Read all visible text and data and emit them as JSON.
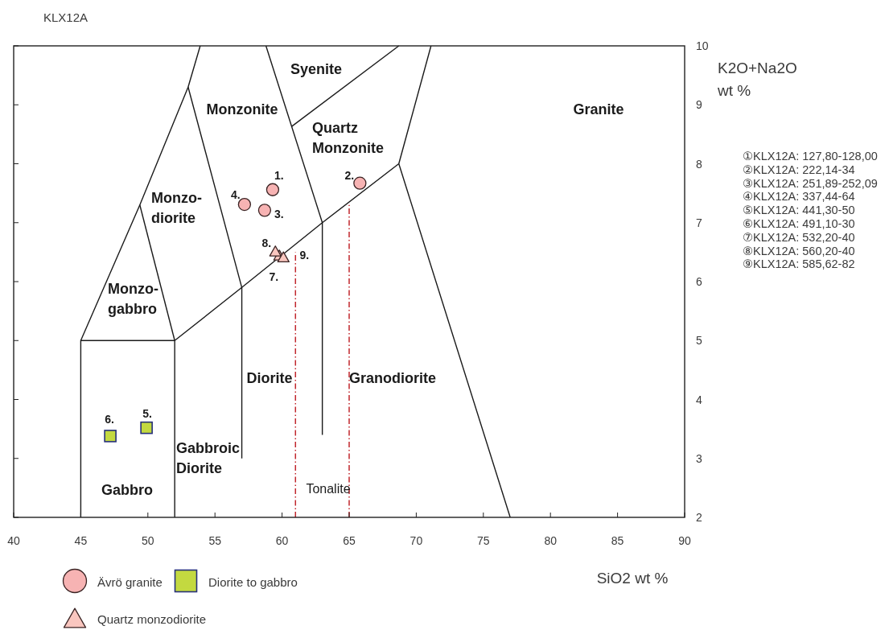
{
  "chart_data": {
    "type": "scatter",
    "title": "KLX12A",
    "xlabel": "SiO2 wt %",
    "ylabel": "K2O+Na2O\nwt %",
    "xlim": [
      40,
      90
    ],
    "ylim": [
      2,
      10
    ],
    "xticks": [
      40,
      45,
      50,
      55,
      60,
      65,
      70,
      75,
      80,
      85,
      90
    ],
    "yticks": [
      2,
      3,
      4,
      5,
      6,
      7,
      8,
      9,
      10
    ],
    "legend": "bottom",
    "series": [
      {
        "type": "line",
        "color": "#1a1a1a",
        "x": [
          45,
          45,
          52,
          52
        ],
        "values": [
          2,
          5,
          5,
          2
        ]
      },
      {
        "type": "line",
        "color": "#1a1a1a",
        "x": [
          45,
          49.4,
          53,
          53.9
        ],
        "values": [
          5,
          7.3,
          9.3,
          10
        ]
      },
      {
        "type": "line",
        "color": "#1a1a1a",
        "x": [
          49.4,
          52
        ],
        "values": [
          7.3,
          5
        ]
      },
      {
        "type": "line",
        "color": "#1a1a1a",
        "x": [
          53,
          57,
          57
        ],
        "values": [
          9.3,
          5.9,
          3
        ]
      },
      {
        "type": "line",
        "color": "#1a1a1a",
        "x": [
          58.8,
          63,
          63
        ],
        "values": [
          10,
          7,
          3.4
        ]
      },
      {
        "type": "line",
        "color": "#1a1a1a",
        "x": [
          60.7,
          68.7
        ],
        "values": [
          8.63,
          10
        ]
      },
      {
        "type": "line",
        "color": "#1a1a1a",
        "x": [
          71.1,
          68.7,
          77
        ],
        "values": [
          10,
          8,
          2
        ]
      },
      {
        "type": "line",
        "color": "#1a1a1a",
        "x": [
          52,
          57,
          63,
          68.7
        ],
        "values": [
          5,
          5.9,
          7,
          8
        ]
      },
      {
        "type": "line",
        "color": "#c1272d",
        "line_style": "dashed",
        "x": [
          61,
          61
        ],
        "values": [
          2,
          6.5
        ]
      },
      {
        "type": "line",
        "color": "#c1272d",
        "line_style": "dashed",
        "x": [
          65,
          65
        ],
        "values": [
          2,
          7.3
        ]
      },
      {
        "type": "scatter",
        "name": "Ävrö granite",
        "marker": "circle",
        "color": "#f7b3b3",
        "x": [
          59.3,
          65.8,
          58.7,
          57.2
        ],
        "values": [
          7.56,
          7.67,
          7.21,
          7.31
        ]
      },
      {
        "type": "scatter",
        "name": "Diorite to gabbro",
        "marker": "square",
        "color": "#c3d940",
        "x": [
          49.9,
          47.2
        ],
        "values": [
          3.52,
          3.38
        ]
      },
      {
        "name": "Quartz monzodiorite",
        "marker": "triangle",
        "color": "#f9c6bf",
        "x": [
          59.8,
          59.5,
          60.1
        ],
        "values": [
          6.45,
          6.52,
          6.42
        ]
      }
    ],
    "annotations": [
      "Syenite",
      "Monzonite",
      "Granite",
      "Quartz\nMonzonite",
      "Monzo-\ndiorite",
      "Monzo-\ngabbro",
      "Diorite",
      "Granodiorite",
      "Gabbroic\nDiorite",
      "Gabbro",
      "Tonalite",
      {
        "text": "1.",
        "x": 59.3,
        "y": 7.56
      },
      {
        "text": "2.",
        "x": 65.8,
        "y": 7.67
      },
      {
        "text": "3.",
        "x": 58.7,
        "y": 7.21
      },
      {
        "text": "4.",
        "x": 57.2,
        "y": 7.31
      },
      {
        "text": "5.",
        "x": 49.9,
        "y": 3.52
      },
      {
        "text": "6.",
        "x": 47.2,
        "y": 3.38
      },
      {
        "text": "7.",
        "x": 59.8,
        "y": 6.45
      },
      {
        "text": "8.",
        "x": 59.5,
        "y": 6.52
      },
      {
        "text": "9.",
        "x": 60.1,
        "y": 6.42
      },
      "①KLX12A: 127,80-128,00",
      "②KLX12A: 222,14-34",
      "③KLX12A: 251,89-252,09",
      "④KLX12A: 337,44-64",
      "⑤KLX12A: 441,30-50",
      "⑥KLX12A: 491,10-30",
      "⑦KLX12A: 532,20-40",
      "⑧KLX12A: 560,20-40",
      "⑨KLX12A: 585,62-82"
    ]
  }
}
